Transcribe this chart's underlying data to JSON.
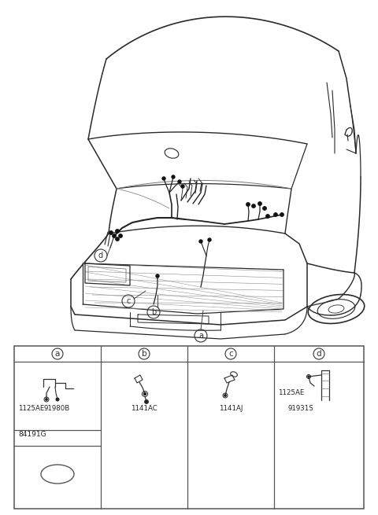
{
  "bg_color": "#ffffff",
  "line_color": "#2a2a2a",
  "table_line_color": "#555555",
  "parts_a": [
    "1125AE",
    "91980B"
  ],
  "parts_b": [
    "1141AC"
  ],
  "parts_c": [
    "1141AJ"
  ],
  "parts_d": [
    "1125AE",
    "91931S"
  ],
  "extra_header": "84191G",
  "fig_width": 4.8,
  "fig_height": 6.55,
  "dpi": 100
}
